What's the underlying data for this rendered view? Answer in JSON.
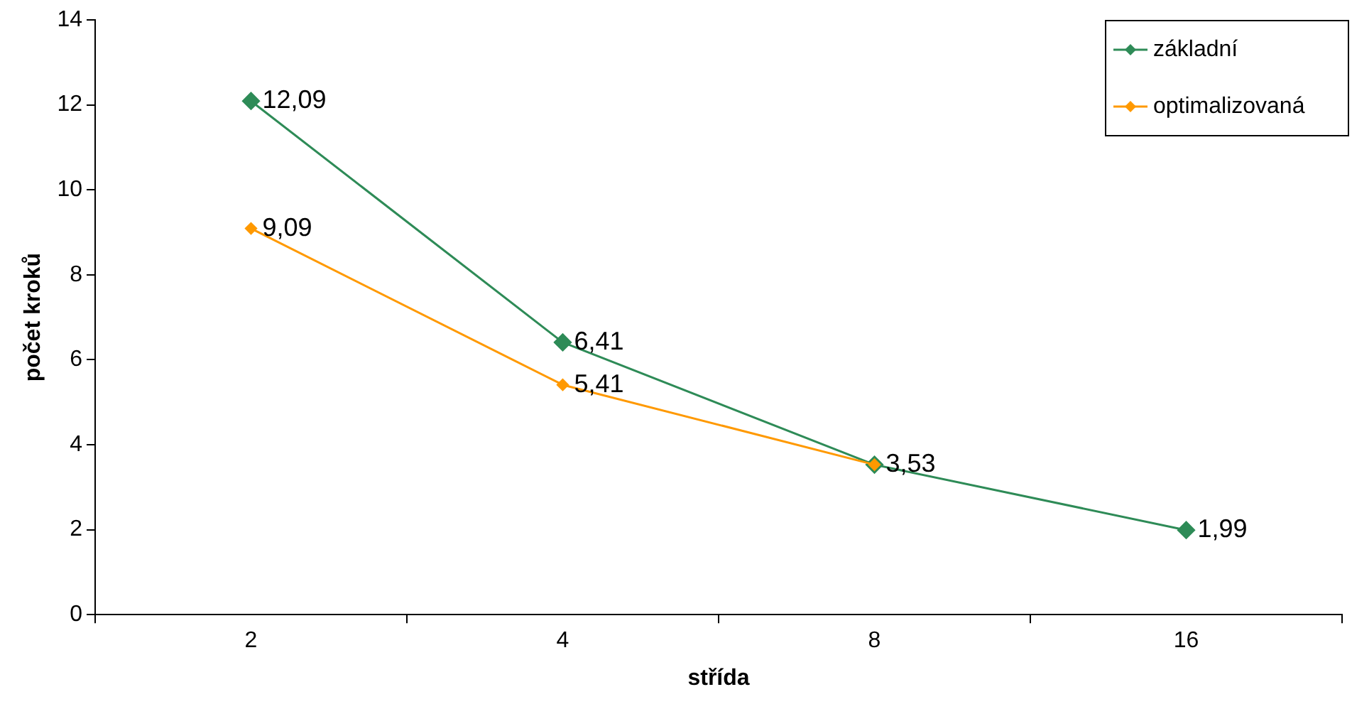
{
  "chart_data": {
    "type": "line",
    "xlabel": "střída",
    "ylabel": "počet kroků",
    "categories": [
      "2",
      "4",
      "8",
      "16"
    ],
    "series": [
      {
        "name": "základní",
        "color": "#2e8b57",
        "values": [
          12.09,
          6.41,
          3.53,
          1.99
        ],
        "value_labels": [
          "12,09",
          "6,41",
          "3,53",
          "1,99"
        ]
      },
      {
        "name": "optimalizovaná",
        "color": "#ff9900",
        "values": [
          9.09,
          5.41,
          3.53,
          null
        ],
        "value_labels": [
          "9,09",
          "5,41",
          null,
          null
        ]
      }
    ],
    "ylim": [
      0,
      14
    ],
    "yticks": [
      0,
      2,
      4,
      6,
      8,
      10,
      12,
      14
    ],
    "grid": false,
    "legend": "top right",
    "marker": "diamond"
  }
}
